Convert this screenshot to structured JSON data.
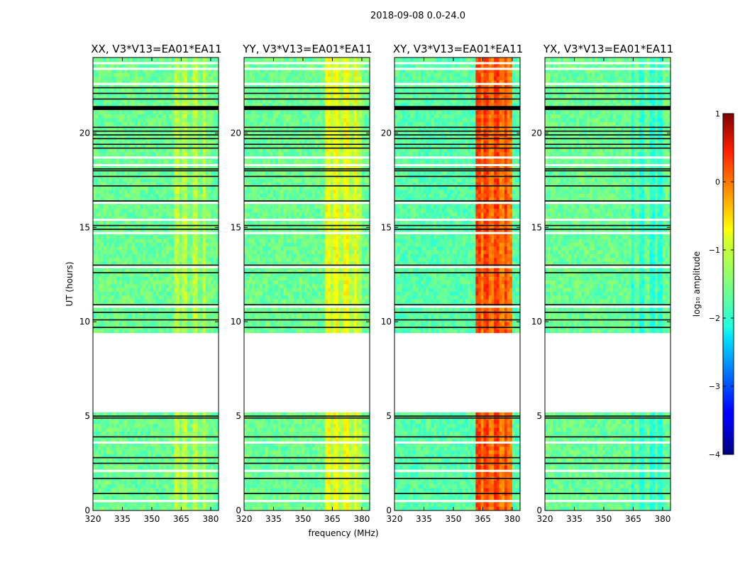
{
  "chart_data": {
    "type": "heatmap",
    "suptitle": "2018-09-08 0.0-24.0",
    "xlabel": "frequency (MHz)",
    "ylabel": "UT (hours)",
    "xlim": [
      320,
      384
    ],
    "ylim": [
      0,
      24
    ],
    "xticks": [
      320,
      335,
      350,
      365,
      380
    ],
    "yticks": [
      0,
      5,
      10,
      15,
      20
    ],
    "panels": [
      {
        "title": "XX, V3*V13=EA01*EA11",
        "pol": "XX",
        "base_level": -1.6,
        "rfi_level": -1.2
      },
      {
        "title": "YY, V3*V13=EA01*EA11",
        "pol": "YY",
        "base_level": -1.6,
        "rfi_level": -0.9
      },
      {
        "title": "XY, V3*V13=EA01*EA11",
        "pol": "XY",
        "base_level": -1.7,
        "rfi_level": 0.1
      },
      {
        "title": "YX, V3*V13=EA01*EA11",
        "pol": "YX",
        "base_level": -1.6,
        "rfi_level": -1.6
      }
    ],
    "rfi_band_mhz": [
      361,
      380
    ],
    "data_gap_ut": [
      5.2,
      9.4
    ],
    "colorbar": {
      "label": "log₁₀ amplitude",
      "range": [
        -4,
        1
      ],
      "ticks": [
        "1",
        "0",
        "−1",
        "−2",
        "−3",
        "−4"
      ],
      "tick_values": [
        1,
        0,
        -1,
        -2,
        -3,
        -4
      ],
      "colormap": "jet"
    }
  }
}
